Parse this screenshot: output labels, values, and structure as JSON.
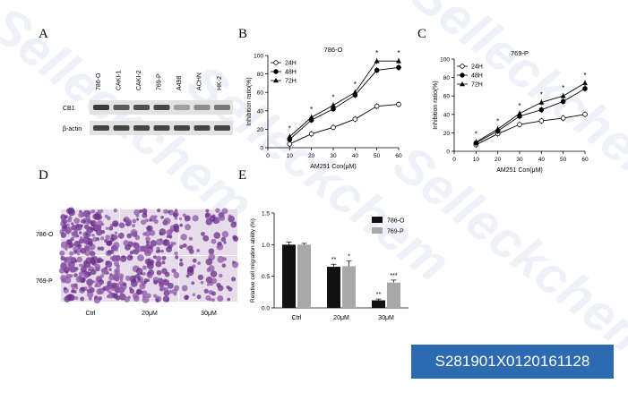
{
  "panel_letters": {
    "a": "A",
    "b": "B",
    "c": "C",
    "d": "D",
    "e": "E"
  },
  "watermark": "Selleckchem",
  "catalog_number": "S281901X0120161128",
  "colors": {
    "badge": "#2d6bb0",
    "bar_786o": "#111111",
    "bar_769p": "#a8a8a8"
  },
  "panel_a": {
    "lanes": [
      "786-O",
      "CAKI-1",
      "CAKI-2",
      "769-P",
      "A498",
      "ACHN",
      "HK-2"
    ],
    "bands": [
      {
        "label": "CB1",
        "intensity": [
          0.85,
          0.7,
          0.75,
          0.8,
          0.35,
          0.45,
          0.55
        ]
      },
      {
        "label": "β-actin",
        "intensity": [
          0.8,
          0.8,
          0.8,
          0.8,
          0.8,
          0.8,
          0.8
        ]
      }
    ]
  },
  "panel_d": {
    "rows": [
      "786-O",
      "769-P"
    ],
    "columns": [
      "Ctrl",
      "20μM",
      "30μM"
    ]
  },
  "chart_data": [
    {
      "type": "line",
      "title": "786-O",
      "xlabel": "AM251 Con(μM)",
      "ylabel": "Inhibition ratio(%)",
      "x": [
        10,
        20,
        30,
        40,
        50,
        60
      ],
      "xticks": [
        0,
        10,
        20,
        30,
        40,
        50,
        60
      ],
      "yticks": [
        0,
        20,
        40,
        60,
        80,
        100
      ],
      "xlim": [
        0,
        60
      ],
      "ylim": [
        0,
        100
      ],
      "legend_position": "top-left",
      "series": [
        {
          "name": "24H",
          "marker": "circle-open",
          "values": [
            4,
            15,
            22,
            31,
            45,
            47
          ]
        },
        {
          "name": "48H",
          "marker": "circle-filled",
          "values": [
            9,
            30,
            42,
            57,
            84,
            87
          ]
        },
        {
          "name": "72H",
          "marker": "triangle",
          "values": [
            12,
            33,
            46,
            60,
            94,
            94
          ]
        }
      ],
      "annotations": [
        "*",
        "*",
        "*",
        "*",
        "*",
        "*"
      ]
    },
    {
      "type": "line",
      "title": "769-P",
      "xlabel": "AM251 Con(μM)",
      "ylabel": "Inhibition ratio(%)",
      "x": [
        10,
        20,
        30,
        40,
        50,
        60
      ],
      "xticks": [
        0,
        10,
        20,
        30,
        40,
        50,
        60
      ],
      "yticks": [
        0,
        20,
        40,
        60,
        80,
        100
      ],
      "xlim": [
        0,
        60
      ],
      "ylim": [
        0,
        100
      ],
      "legend_position": "top-left",
      "series": [
        {
          "name": "24H",
          "marker": "circle-open",
          "values": [
            7,
            19,
            29,
            33,
            36,
            40
          ]
        },
        {
          "name": "48H",
          "marker": "circle-filled",
          "values": [
            9,
            22,
            38,
            45,
            54,
            68
          ]
        },
        {
          "name": "72H",
          "marker": "triangle",
          "values": [
            10,
            24,
            41,
            53,
            60,
            74
          ]
        }
      ],
      "annotations": [
        "*",
        "*",
        "*",
        "*",
        "*",
        "*"
      ]
    },
    {
      "type": "bar",
      "ylabel": "Relative cell migration ability (%)",
      "categories": [
        "Ctrl",
        "20μM",
        "30μM"
      ],
      "yticks": [
        0.0,
        0.5,
        1.0,
        1.5
      ],
      "ylim": [
        0,
        1.5
      ],
      "legend_position": "top-right",
      "series": [
        {
          "name": "786-O",
          "values": [
            1.0,
            0.65,
            0.12
          ],
          "errors": [
            0.04,
            0.04,
            0.02
          ],
          "sig": [
            "",
            "**",
            "**"
          ]
        },
        {
          "name": "769-P",
          "values": [
            1.0,
            0.66,
            0.4
          ],
          "errors": [
            0.02,
            0.08,
            0.04
          ],
          "sig": [
            "",
            "*",
            "***"
          ]
        }
      ]
    }
  ]
}
